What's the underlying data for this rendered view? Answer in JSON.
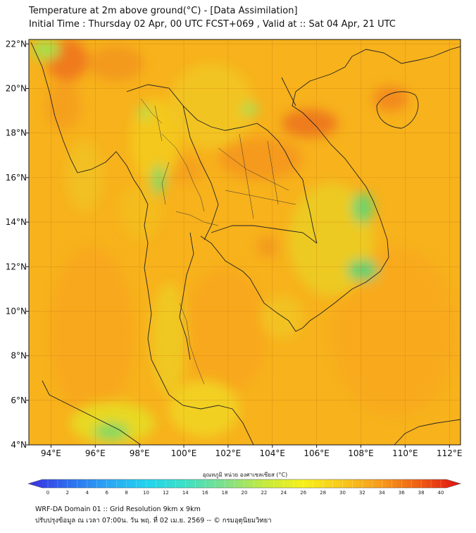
{
  "title": {
    "line1": "Temperature at 2m above ground(°C) - [Data Assimilation]",
    "line2": "Initial Time : Thursday 02 Apr, 00 UTC FCST+069 , Valid at :: Sat 04 Apr, 21 UTC"
  },
  "map": {
    "lon_range": [
      93,
      112.5
    ],
    "lat_range": [
      4,
      22.2
    ],
    "x_ticks": [
      {
        "value": 94,
        "label": "94°E"
      },
      {
        "value": 96,
        "label": "96°E"
      },
      {
        "value": 98,
        "label": "98°E"
      },
      {
        "value": 100,
        "label": "100°E"
      },
      {
        "value": 102,
        "label": "102°E"
      },
      {
        "value": 104,
        "label": "104°E"
      },
      {
        "value": 106,
        "label": "106°E"
      },
      {
        "value": 108,
        "label": "108°E"
      },
      {
        "value": 110,
        "label": "110°E"
      },
      {
        "value": 112,
        "label": "112°E"
      }
    ],
    "y_ticks": [
      {
        "value": 4,
        "label": "4°N"
      },
      {
        "value": 6,
        "label": "6°N"
      },
      {
        "value": 8,
        "label": "8°N"
      },
      {
        "value": 10,
        "label": "10°N"
      },
      {
        "value": 12,
        "label": "12°N"
      },
      {
        "value": 14,
        "label": "14°N"
      },
      {
        "value": 16,
        "label": "16°N"
      },
      {
        "value": 18,
        "label": "18°N"
      },
      {
        "value": 20,
        "label": "20°N"
      },
      {
        "value": 22,
        "label": "22°N"
      }
    ],
    "grid": true,
    "base_color": "#f7b21c"
  },
  "colorbar": {
    "label": "อุณหภูมิ หน่วย องศาเซลเซียส (°C)",
    "min": 0,
    "max": 40,
    "ticks": [
      "0",
      "2",
      "4",
      "6",
      "8",
      "10",
      "12",
      "14",
      "16",
      "18",
      "20",
      "22",
      "24",
      "26",
      "28",
      "30",
      "32",
      "34",
      "36",
      "38",
      "40"
    ],
    "colors": [
      "#3a2fe0",
      "#2e6cf0",
      "#2aa4f4",
      "#22d3ef",
      "#3ee0c4",
      "#7ee08a",
      "#c4ea3e",
      "#f7f01a",
      "#f8c81c",
      "#f79a1c",
      "#ef5a14",
      "#e01010"
    ]
  },
  "footer": {
    "line1": "WRF-DA Domain 01 :: Grid Resolution 9km x 9km",
    "line2": "ปรับปรุงข้อมูล ณ เวลา 07:00น. วัน พฤ. ที่ 02 เม.ย. 2569 -- © กรมอุตุนิยมวิทยา"
  }
}
